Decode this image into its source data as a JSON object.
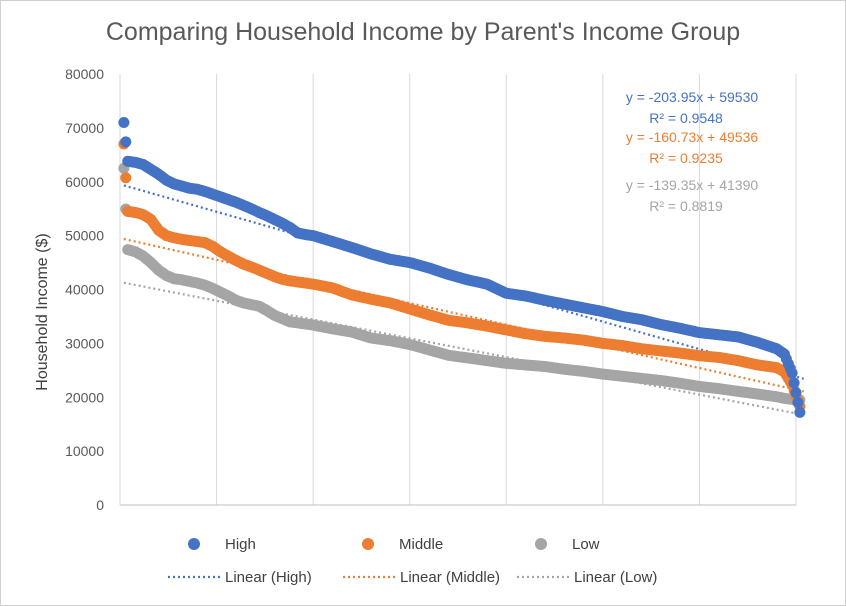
{
  "chart_data": {
    "type": "scatter",
    "title": "Comparing Household Income by Parent's Income Group",
    "xlabel": "",
    "ylabel": "Household Income ($)",
    "xlim": [
      0,
      175
    ],
    "ylim": [
      0,
      80000
    ],
    "yticks": [
      "0",
      "10000",
      "20000",
      "30000",
      "40000",
      "50000",
      "60000",
      "70000",
      "80000"
    ],
    "grid": "vertical",
    "legend_position": "bottom",
    "series": [
      {
        "name": "High",
        "color": "#4472C4",
        "x": [
          1,
          2,
          4,
          6,
          8,
          10,
          12,
          14,
          16,
          18,
          20,
          22,
          24,
          26,
          28,
          30,
          32,
          34,
          36,
          38,
          40,
          42,
          44,
          46,
          48,
          50,
          55,
          60,
          65,
          70,
          75,
          80,
          85,
          90,
          95,
          100,
          105,
          110,
          115,
          120,
          125,
          130,
          135,
          140,
          145,
          150,
          155,
          160,
          165,
          170,
          172,
          174,
          176
        ],
        "y": [
          71000,
          63800,
          63600,
          63200,
          62300,
          61400,
          60300,
          59600,
          59200,
          58800,
          58600,
          58200,
          57700,
          57200,
          56700,
          56200,
          55600,
          55000,
          54300,
          53700,
          53000,
          52300,
          51500,
          50500,
          50200,
          50000,
          48900,
          47800,
          46600,
          45600,
          45000,
          44000,
          42800,
          41800,
          41000,
          39300,
          38800,
          38000,
          37300,
          36600,
          35900,
          35000,
          34400,
          33500,
          32800,
          32000,
          31600,
          31200,
          30200,
          29000,
          28000,
          24500,
          17200
        ]
      },
      {
        "name": "Middle",
        "color": "#ED7D31",
        "x": [
          1,
          2,
          4,
          6,
          8,
          10,
          12,
          14,
          16,
          18,
          20,
          22,
          24,
          26,
          28,
          30,
          32,
          34,
          36,
          38,
          40,
          42,
          44,
          46,
          48,
          50,
          55,
          60,
          65,
          70,
          75,
          80,
          85,
          90,
          95,
          100,
          105,
          110,
          115,
          120,
          125,
          130,
          135,
          140,
          145,
          150,
          155,
          160,
          165,
          170,
          172,
          174,
          176
        ],
        "y": [
          67000,
          54500,
          54300,
          53900,
          53000,
          51000,
          50000,
          49600,
          49300,
          49100,
          48900,
          48700,
          48000,
          47000,
          46200,
          45400,
          44700,
          44200,
          43600,
          43000,
          42400,
          41900,
          41600,
          41400,
          41200,
          41000,
          40300,
          39000,
          38200,
          37500,
          36400,
          35300,
          34300,
          33800,
          33200,
          32500,
          31800,
          31300,
          31000,
          30600,
          30000,
          29600,
          29000,
          28600,
          28200,
          27700,
          27400,
          26800,
          26000,
          25500,
          24700,
          22300,
          18300
        ]
      },
      {
        "name": "Low",
        "color": "#A5A5A5",
        "x": [
          1,
          2,
          4,
          6,
          8,
          10,
          12,
          14,
          16,
          18,
          20,
          22,
          24,
          26,
          28,
          30,
          32,
          34,
          36,
          38,
          40,
          42,
          44,
          46,
          48,
          50,
          55,
          60,
          65,
          70,
          75,
          80,
          85,
          90,
          95,
          100,
          105,
          110,
          115,
          120,
          125,
          130,
          135,
          140,
          145,
          150,
          155,
          160,
          165,
          170,
          172,
          174,
          176
        ],
        "y": [
          62500,
          47400,
          47000,
          46200,
          45000,
          43600,
          42600,
          42000,
          41800,
          41500,
          41200,
          40800,
          40200,
          39500,
          38800,
          38000,
          37500,
          37200,
          36900,
          36100,
          35200,
          34600,
          34000,
          33800,
          33600,
          33400,
          32700,
          32100,
          31000,
          30500,
          29800,
          28800,
          27800,
          27300,
          26800,
          26300,
          26000,
          25700,
          25200,
          24800,
          24300,
          23900,
          23500,
          23100,
          22600,
          22000,
          21600,
          21100,
          20600,
          20100,
          19800,
          19600,
          19500
        ]
      }
    ],
    "trendlines": [
      {
        "name": "Linear (High)",
        "color": "#4472C4",
        "slope": -203.95,
        "intercept": 59530,
        "equation": "y = -203.95x + 59530",
        "r2": "R² = 0.9548"
      },
      {
        "name": "Linear (Middle)",
        "color": "#ED7D31",
        "slope": -160.73,
        "intercept": 49536,
        "equation": "y = -160.73x + 49536",
        "r2": "R² = 0.9235"
      },
      {
        "name": "Linear (Low)",
        "color": "#A5A5A5",
        "slope": -139.35,
        "intercept": 41390,
        "equation": "y = -139.35x + 41390",
        "r2": "R² = 0.8819"
      }
    ]
  }
}
